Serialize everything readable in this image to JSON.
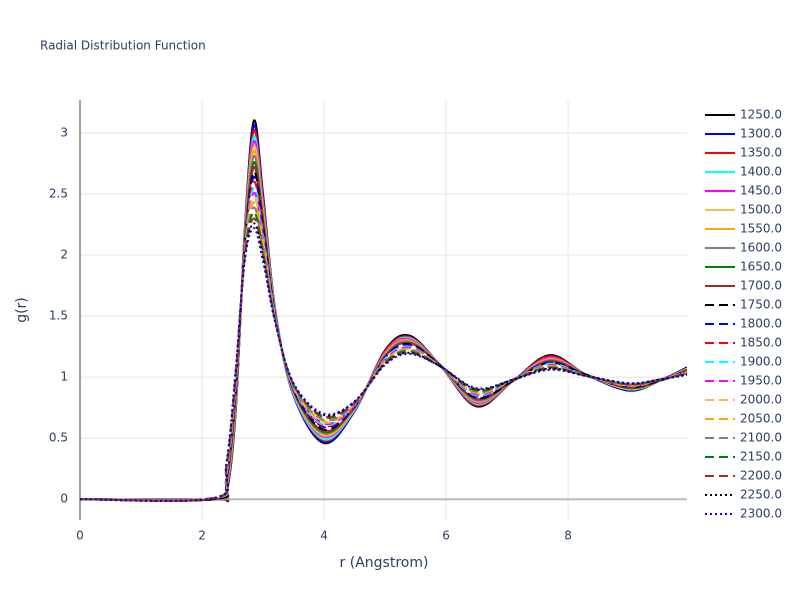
{
  "chart_data": {
    "type": "line",
    "title": "Radial Distribution Function",
    "x_label": "r (Angstrom)",
    "y_label": "g(r)",
    "x": [
      0,
      2.2,
      2.4,
      2.55,
      2.7,
      2.85,
      3.0,
      3.2,
      3.5,
      4.0,
      4.5,
      5.0,
      5.4,
      5.9,
      6.5,
      7.1,
      7.7,
      8.3,
      9.0,
      9.5,
      9.95
    ],
    "xlim": [
      0,
      9.95
    ],
    "xticks": [
      0,
      2,
      4,
      6,
      8
    ],
    "ylim": [
      -0.17,
      3.27
    ],
    "yticks": [
      0,
      0.5,
      1,
      1.5,
      2,
      2.5,
      3
    ],
    "grid": true,
    "legend": "right",
    "series": [
      {
        "name": "1250.0",
        "color": "#000000",
        "dash": "solid",
        "values": [
          0,
          0,
          0.05,
          0.7,
          2.2,
          3.1,
          2.5,
          1.55,
          0.85,
          0.46,
          0.72,
          1.22,
          1.34,
          1.1,
          0.76,
          0.97,
          1.18,
          1.02,
          0.89,
          0.97,
          1.08
        ]
      },
      {
        "name": "1300.0",
        "color": "#0000ff",
        "dash": "solid",
        "values": [
          0,
          0,
          0.06,
          0.72,
          2.19,
          3.06,
          2.47,
          1.55,
          0.85,
          0.47,
          0.72,
          1.21,
          1.33,
          1.1,
          0.77,
          0.97,
          1.17,
          1.02,
          0.89,
          0.97,
          1.08
        ]
      },
      {
        "name": "1350.0",
        "color": "#ff0000",
        "dash": "solid",
        "values": [
          0,
          0,
          0.07,
          0.73,
          2.18,
          3.02,
          2.45,
          1.54,
          0.86,
          0.48,
          0.73,
          1.21,
          1.33,
          1.1,
          0.77,
          0.97,
          1.17,
          1.02,
          0.9,
          0.97,
          1.07
        ]
      },
      {
        "name": "1400.0",
        "color": "#00ffff",
        "dash": "solid",
        "values": [
          0,
          0,
          0.09,
          0.75,
          2.16,
          2.97,
          2.42,
          1.54,
          0.86,
          0.49,
          0.73,
          1.2,
          1.32,
          1.1,
          0.78,
          0.97,
          1.16,
          1.02,
          0.9,
          0.97,
          1.07
        ]
      },
      {
        "name": "1450.0",
        "color": "#ff00ff",
        "dash": "solid",
        "values": [
          0,
          0,
          0.1,
          0.77,
          2.15,
          2.93,
          2.4,
          1.53,
          0.87,
          0.51,
          0.74,
          1.2,
          1.31,
          1.1,
          0.79,
          0.97,
          1.16,
          1.02,
          0.9,
          0.97,
          1.07
        ]
      },
      {
        "name": "1500.0",
        "color": "#f6c142",
        "dash": "solid",
        "values": [
          0,
          0,
          0.11,
          0.78,
          2.14,
          2.89,
          2.37,
          1.53,
          0.87,
          0.52,
          0.74,
          1.19,
          1.3,
          1.1,
          0.8,
          0.97,
          1.15,
          1.02,
          0.9,
          0.97,
          1.07
        ]
      },
      {
        "name": "1550.0",
        "color": "#ffa500",
        "dash": "solid",
        "values": [
          0,
          0,
          0.12,
          0.8,
          2.13,
          2.85,
          2.34,
          1.52,
          0.88,
          0.53,
          0.74,
          1.19,
          1.3,
          1.1,
          0.8,
          0.97,
          1.15,
          1.02,
          0.91,
          0.97,
          1.06
        ]
      },
      {
        "name": "1600.0",
        "color": "#808080",
        "dash": "solid",
        "values": [
          0,
          0,
          0.13,
          0.82,
          2.12,
          2.81,
          2.32,
          1.52,
          0.88,
          0.54,
          0.75,
          1.18,
          1.29,
          1.1,
          0.81,
          0.97,
          1.14,
          1.02,
          0.91,
          0.97,
          1.06
        ]
      },
      {
        "name": "1650.0",
        "color": "#008000",
        "dash": "solid",
        "values": [
          0,
          0,
          0.15,
          0.83,
          2.1,
          2.76,
          2.29,
          1.51,
          0.89,
          0.55,
          0.75,
          1.17,
          1.28,
          1.1,
          0.82,
          0.97,
          1.13,
          1.02,
          0.91,
          0.97,
          1.06
        ]
      },
      {
        "name": "1700.0",
        "color": "#a52a2a",
        "dash": "solid",
        "values": [
          0,
          0,
          0.16,
          0.85,
          2.09,
          2.72,
          2.26,
          1.51,
          0.89,
          0.56,
          0.75,
          1.17,
          1.28,
          1.1,
          0.82,
          0.97,
          1.13,
          1.02,
          0.92,
          0.97,
          1.05
        ]
      },
      {
        "name": "1750.0",
        "color": "#000000",
        "dash": "dash",
        "values": [
          0,
          0,
          0.17,
          0.87,
          2.08,
          2.68,
          2.24,
          1.5,
          0.9,
          0.57,
          0.76,
          1.16,
          1.27,
          1.1,
          0.83,
          0.97,
          1.12,
          1.02,
          0.92,
          0.97,
          1.05
        ]
      },
      {
        "name": "1800.0",
        "color": "#0000ff",
        "dash": "dash",
        "values": [
          0,
          0.01,
          0.18,
          0.88,
          2.07,
          2.64,
          2.21,
          1.5,
          0.9,
          0.59,
          0.76,
          1.16,
          1.26,
          1.09,
          0.84,
          0.98,
          1.12,
          1.01,
          0.92,
          0.98,
          1.05
        ]
      },
      {
        "name": "1850.0",
        "color": "#ff0000",
        "dash": "dash",
        "values": [
          0,
          0.01,
          0.19,
          0.9,
          2.06,
          2.6,
          2.19,
          1.49,
          0.91,
          0.6,
          0.77,
          1.15,
          1.25,
          1.09,
          0.85,
          0.98,
          1.11,
          1.01,
          0.92,
          0.98,
          1.05
        ]
      },
      {
        "name": "1900.0",
        "color": "#00ffff",
        "dash": "dash",
        "values": [
          0,
          0.01,
          0.2,
          0.92,
          2.05,
          2.55,
          2.16,
          1.49,
          0.91,
          0.61,
          0.77,
          1.15,
          1.25,
          1.09,
          0.85,
          0.98,
          1.11,
          1.01,
          0.93,
          0.98,
          1.04
        ]
      },
      {
        "name": "1950.0",
        "color": "#ff00ff",
        "dash": "dash",
        "values": [
          0,
          0.01,
          0.22,
          0.93,
          2.03,
          2.51,
          2.13,
          1.48,
          0.92,
          0.62,
          0.77,
          1.14,
          1.24,
          1.09,
          0.86,
          0.98,
          1.1,
          1.01,
          0.93,
          0.98,
          1.04
        ]
      },
      {
        "name": "2000.0",
        "color": "#f6c142",
        "dash": "dash",
        "values": [
          0,
          0.01,
          0.23,
          0.95,
          2.02,
          2.47,
          2.11,
          1.48,
          0.92,
          0.63,
          0.78,
          1.13,
          1.23,
          1.09,
          0.87,
          0.98,
          1.09,
          1.01,
          0.93,
          0.98,
          1.04
        ]
      },
      {
        "name": "2050.0",
        "color": "#ffa500",
        "dash": "dash",
        "values": [
          0,
          0.01,
          0.24,
          0.97,
          2.01,
          2.43,
          2.08,
          1.47,
          0.93,
          0.64,
          0.78,
          1.13,
          1.23,
          1.09,
          0.87,
          0.98,
          1.09,
          1.01,
          0.94,
          0.98,
          1.03
        ]
      },
      {
        "name": "2100.0",
        "color": "#808080",
        "dash": "dash",
        "values": [
          0,
          0.01,
          0.25,
          0.98,
          2,
          2.39,
          2.05,
          1.47,
          0.93,
          0.65,
          0.78,
          1.12,
          1.22,
          1.09,
          0.88,
          0.98,
          1.08,
          1.01,
          0.94,
          0.98,
          1.03
        ]
      },
      {
        "name": "2150.0",
        "color": "#008000",
        "dash": "dash",
        "values": [
          0,
          0.01,
          0.26,
          1,
          1.99,
          2.35,
          2.03,
          1.46,
          0.94,
          0.67,
          0.79,
          1.12,
          1.21,
          1.09,
          0.89,
          0.98,
          1.08,
          1.01,
          0.94,
          0.98,
          1.03
        ]
      },
      {
        "name": "2200.0",
        "color": "#a52a2a",
        "dash": "dash",
        "values": [
          0,
          0.01,
          0.28,
          1.02,
          1.97,
          2.3,
          2,
          1.46,
          0.94,
          0.68,
          0.79,
          1.11,
          1.2,
          1.09,
          0.9,
          0.98,
          1.07,
          1.01,
          0.94,
          0.98,
          1.03
        ]
      },
      {
        "name": "2250.0",
        "color": "#000000",
        "dash": "dot",
        "values": [
          0,
          0.01,
          0.29,
          1.03,
          1.96,
          2.26,
          1.98,
          1.45,
          0.95,
          0.69,
          0.8,
          1.11,
          1.2,
          1.09,
          0.9,
          0.98,
          1.07,
          1.01,
          0.95,
          0.98,
          1.02
        ]
      },
      {
        "name": "2300.0",
        "color": "#0000ff",
        "dash": "dot",
        "values": [
          0,
          0.01,
          0.3,
          1.05,
          1.95,
          2.22,
          1.95,
          1.45,
          0.95,
          0.7,
          0.8,
          1.1,
          1.19,
          1.09,
          0.91,
          0.98,
          1.06,
          1.01,
          0.95,
          0.98,
          1.02
        ]
      }
    ]
  }
}
